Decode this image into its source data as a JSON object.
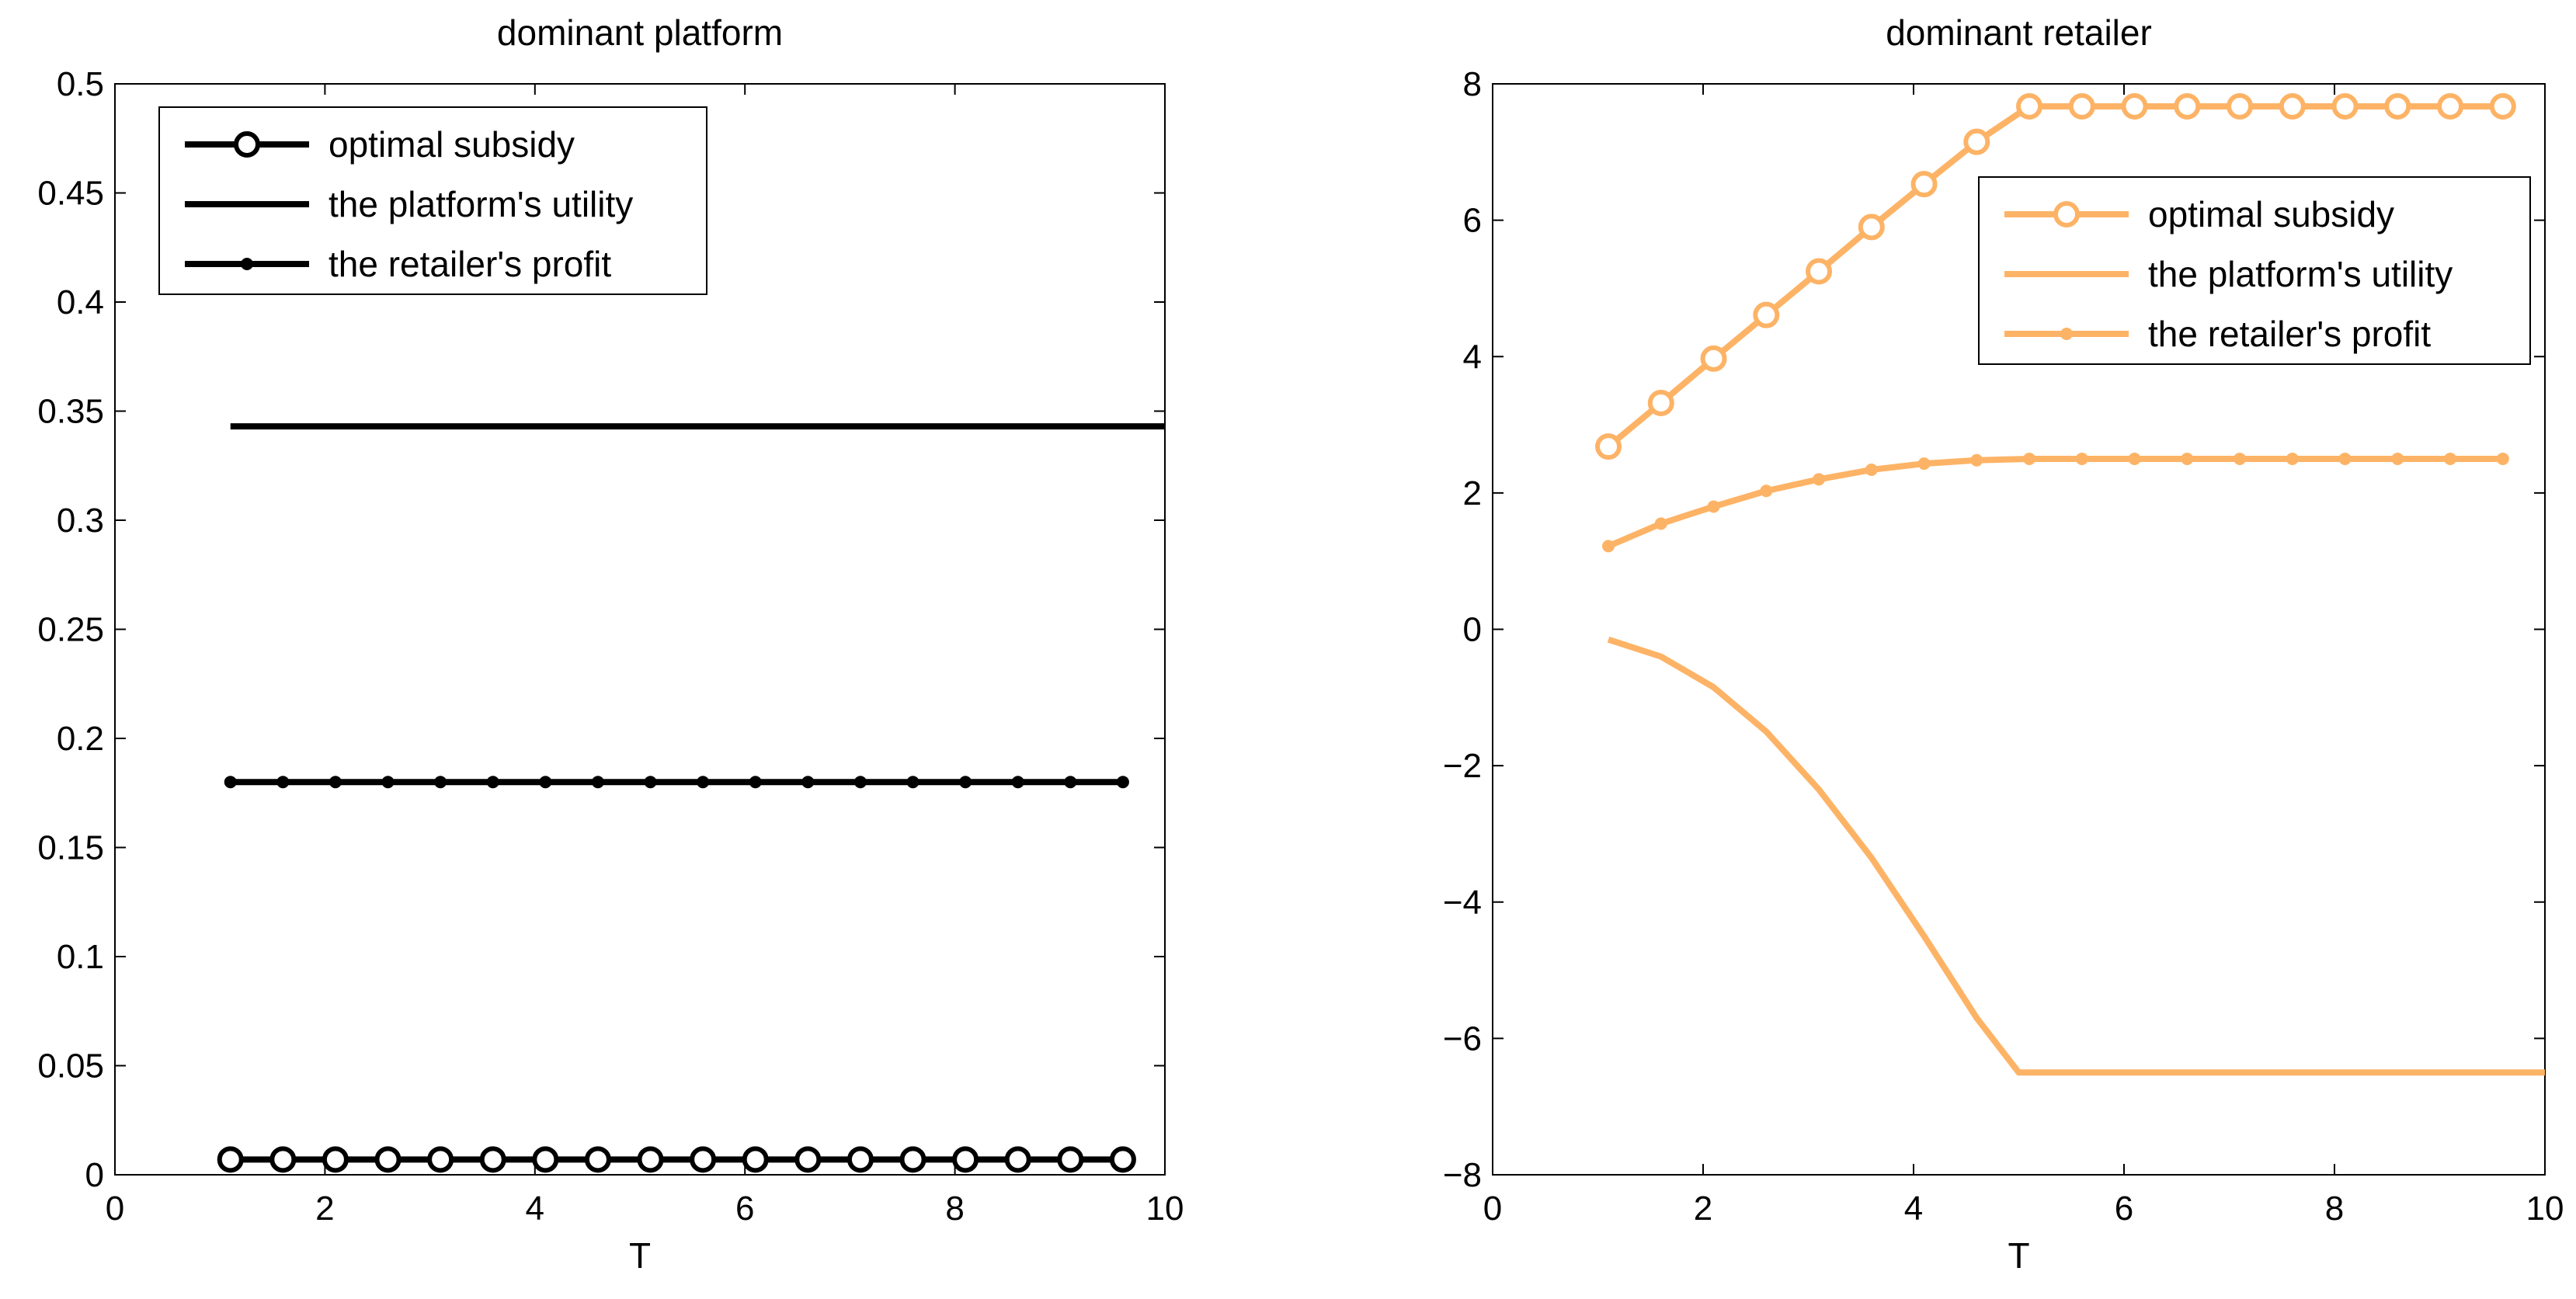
{
  "chart_data": [
    {
      "type": "line",
      "title": "dominant platform",
      "xlabel": "T",
      "ylabel": "",
      "xlim": [
        0,
        10
      ],
      "ylim": [
        0,
        0.5
      ],
      "xticks": [
        0,
        2,
        4,
        6,
        8,
        10
      ],
      "yticks": [
        0,
        0.05,
        0.1,
        0.15,
        0.2,
        0.25,
        0.3,
        0.35,
        0.4,
        0.45,
        0.5
      ],
      "color": "#000000",
      "legend_position": "top-left",
      "grid": false,
      "series": [
        {
          "name": "optimal subsidy",
          "marker": "circle",
          "x": [
            1.1,
            1.6,
            2.1,
            2.6,
            3.1,
            3.6,
            4.1,
            4.6,
            5.1,
            5.6,
            6.1,
            6.6,
            7.1,
            7.6,
            8.1,
            8.6,
            9.1,
            9.6
          ],
          "y": [
            0.007,
            0.007,
            0.007,
            0.007,
            0.007,
            0.007,
            0.007,
            0.007,
            0.007,
            0.007,
            0.007,
            0.007,
            0.007,
            0.007,
            0.007,
            0.007,
            0.007,
            0.007
          ]
        },
        {
          "name": "the platform's utility",
          "marker": "none",
          "x": [
            1.1,
            10
          ],
          "y": [
            0.343,
            0.343
          ]
        },
        {
          "name": "the retailer's profit",
          "marker": "dot",
          "x": [
            1.1,
            1.6,
            2.1,
            2.6,
            3.1,
            3.6,
            4.1,
            4.6,
            5.1,
            5.6,
            6.1,
            6.6,
            7.1,
            7.6,
            8.1,
            8.6,
            9.1,
            9.6
          ],
          "y": [
            0.18,
            0.18,
            0.18,
            0.18,
            0.18,
            0.18,
            0.18,
            0.18,
            0.18,
            0.18,
            0.18,
            0.18,
            0.18,
            0.18,
            0.18,
            0.18,
            0.18,
            0.18
          ]
        }
      ]
    },
    {
      "type": "line",
      "title": "dominant retailer",
      "xlabel": "T",
      "ylabel": "",
      "xlim": [
        0,
        10
      ],
      "ylim": [
        -8,
        8
      ],
      "xticks": [
        0,
        2,
        4,
        6,
        8,
        10
      ],
      "yticks": [
        -8,
        -6,
        -4,
        -2,
        0,
        2,
        4,
        6,
        8
      ],
      "color": "#FDB366",
      "legend_position": "top-right",
      "grid": false,
      "series": [
        {
          "name": "optimal subsidy",
          "marker": "circle",
          "x": [
            1.1,
            1.6,
            2.1,
            2.6,
            3.1,
            3.6,
            4.1,
            4.6,
            5.1,
            5.6,
            6.1,
            6.6,
            7.1,
            7.6,
            8.1,
            8.6,
            9.1,
            9.6
          ],
          "y": [
            2.68,
            3.32,
            3.97,
            4.61,
            5.25,
            5.9,
            6.53,
            7.15,
            7.67,
            7.67,
            7.67,
            7.67,
            7.67,
            7.67,
            7.67,
            7.67,
            7.67,
            7.67
          ]
        },
        {
          "name": "the platform's utility",
          "marker": "none",
          "x": [
            1.1,
            1.6,
            2.1,
            2.6,
            3.1,
            3.6,
            4.1,
            4.6,
            5.0,
            6.0,
            7.0,
            8.0,
            9.0,
            10.0
          ],
          "y": [
            -0.15,
            -0.4,
            -0.85,
            -1.5,
            -2.35,
            -3.35,
            -4.5,
            -5.7,
            -6.5,
            -6.5,
            -6.5,
            -6.5,
            -6.5,
            -6.5
          ]
        },
        {
          "name": "the retailer's profit",
          "marker": "dot",
          "x": [
            1.1,
            1.6,
            2.1,
            2.6,
            3.1,
            3.6,
            4.1,
            4.6,
            5.1,
            5.6,
            6.1,
            6.6,
            7.1,
            7.6,
            8.1,
            8.6,
            9.1,
            9.6
          ],
          "y": [
            1.22,
            1.55,
            1.8,
            2.03,
            2.2,
            2.34,
            2.43,
            2.48,
            2.5,
            2.5,
            2.5,
            2.5,
            2.5,
            2.5,
            2.5,
            2.5,
            2.5,
            2.5
          ]
        }
      ]
    }
  ]
}
